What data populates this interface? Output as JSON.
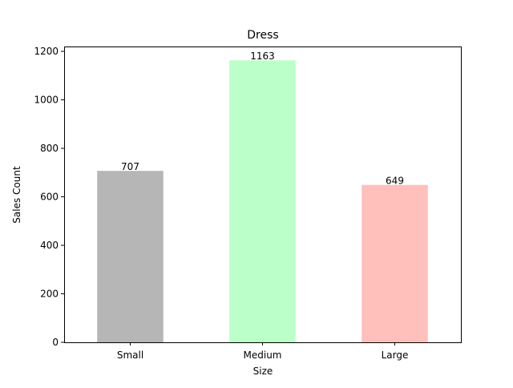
{
  "chart_data": {
    "type": "bar",
    "title": "Dress",
    "xlabel": "Size",
    "ylabel": "Sales Count",
    "categories": [
      "Small",
      "Medium",
      "Large"
    ],
    "values": [
      707,
      1163,
      649
    ],
    "data_labels": [
      "707",
      "1163",
      "649"
    ],
    "colors": [
      "#b7b6b6",
      "#bbffc9",
      "#ffbfbb"
    ],
    "ylim": [
      0,
      1220
    ],
    "yticks": [
      0,
      200,
      400,
      600,
      800,
      1000,
      1200
    ],
    "grid": false,
    "legend": false
  }
}
